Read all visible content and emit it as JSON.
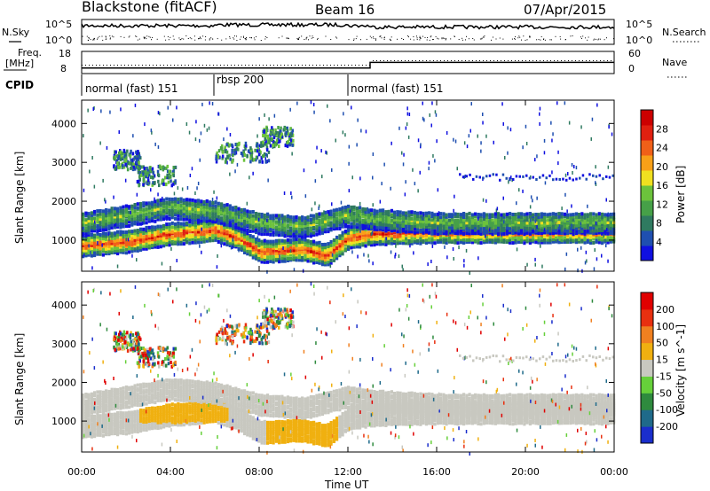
{
  "header": {
    "station": "Blackstone (fitACF)",
    "beam": "Beam 16",
    "date": "07/Apr/2015"
  },
  "noise_panel": {
    "left_label": "N.Sky",
    "right_label": "N.Search",
    "left_ticks": [
      "10^5",
      "10^0"
    ],
    "right_ticks": [
      "10^5",
      "10^0"
    ]
  },
  "freq_panel": {
    "left_label_1": "Freq.",
    "left_label_2": "[MHz]",
    "left_ticks": [
      "18",
      "8"
    ],
    "right_label": "Nave",
    "right_ticks": [
      "60",
      "0"
    ]
  },
  "cpid_panel": {
    "label": "CPID",
    "segments": [
      {
        "name": "normal (fast) 151",
        "start_h": 0
      },
      {
        "name": "rbsp 200",
        "start_h": 6
      },
      {
        "name": "normal (fast) 151",
        "start_h": 12
      }
    ]
  },
  "x_axis": {
    "label": "Time UT",
    "ticks": [
      "00:00",
      "04:00",
      "08:00",
      "12:00",
      "16:00",
      "20:00",
      "00:00"
    ]
  },
  "power_panel": {
    "ylabel": "Slant Range [km]",
    "yticks": [
      "1000",
      "2000",
      "3000",
      "4000"
    ],
    "colorbar_label": "Power [dB]",
    "colorbar_ticks": [
      "4",
      "8",
      "12",
      "16",
      "20",
      "24",
      "28"
    ],
    "colors": [
      "#1010e0",
      "#1f4fb0",
      "#2f7a60",
      "#46a048",
      "#6cc23c",
      "#f0e020",
      "#f8a018",
      "#f06018",
      "#e02010",
      "#cc0000"
    ]
  },
  "velocity_panel": {
    "ylabel": "Slant Range [km]",
    "yticks": [
      "1000",
      "2000",
      "3000",
      "4000"
    ],
    "colorbar_label": "Velocity [m s^-1]",
    "colorbar_ticks": [
      "200",
      "100",
      "50",
      "15",
      "-15",
      "-50",
      "-100",
      "-200"
    ],
    "colors": [
      "#1a2ecc",
      "#1f6a8a",
      "#2e8a3e",
      "#66d03a",
      "#c8c8c0",
      "#f0b010",
      "#f08020",
      "#e83010",
      "#e00000"
    ]
  },
  "chart_data": {
    "type": "heatmap",
    "x_range_hours": [
      0,
      24
    ],
    "y_range_km": [
      200,
      4600
    ],
    "freq_mhz": [
      {
        "start_h": 0,
        "end_h": 13,
        "value": 10
      },
      {
        "start_h": 13,
        "end_h": 24,
        "value": 14
      }
    ],
    "power_bands": [
      {
        "name": "lower band",
        "points": [
          [
            0,
            900
          ],
          [
            2,
            1000
          ],
          [
            4,
            1200
          ],
          [
            6,
            1300
          ],
          [
            7,
            1100
          ],
          [
            8,
            750
          ],
          [
            10,
            800
          ],
          [
            11,
            650
          ],
          [
            12,
            1100
          ],
          [
            13,
            1200
          ],
          [
            16,
            1250
          ],
          [
            20,
            1250
          ],
          [
            24,
            1250
          ]
        ],
        "peak_db": 28
      },
      {
        "name": "upper band",
        "points": [
          [
            0,
            1500
          ],
          [
            2,
            1700
          ],
          [
            4,
            1900
          ],
          [
            6,
            1800
          ],
          [
            8,
            1500
          ],
          [
            10,
            1400
          ],
          [
            12,
            1700
          ],
          [
            13,
            1600
          ],
          [
            16,
            1500
          ],
          [
            20,
            1500
          ],
          [
            24,
            1500
          ]
        ],
        "peak_db": 16
      }
    ],
    "velocity_dominant": "ground scatter (-15 to 15)"
  }
}
